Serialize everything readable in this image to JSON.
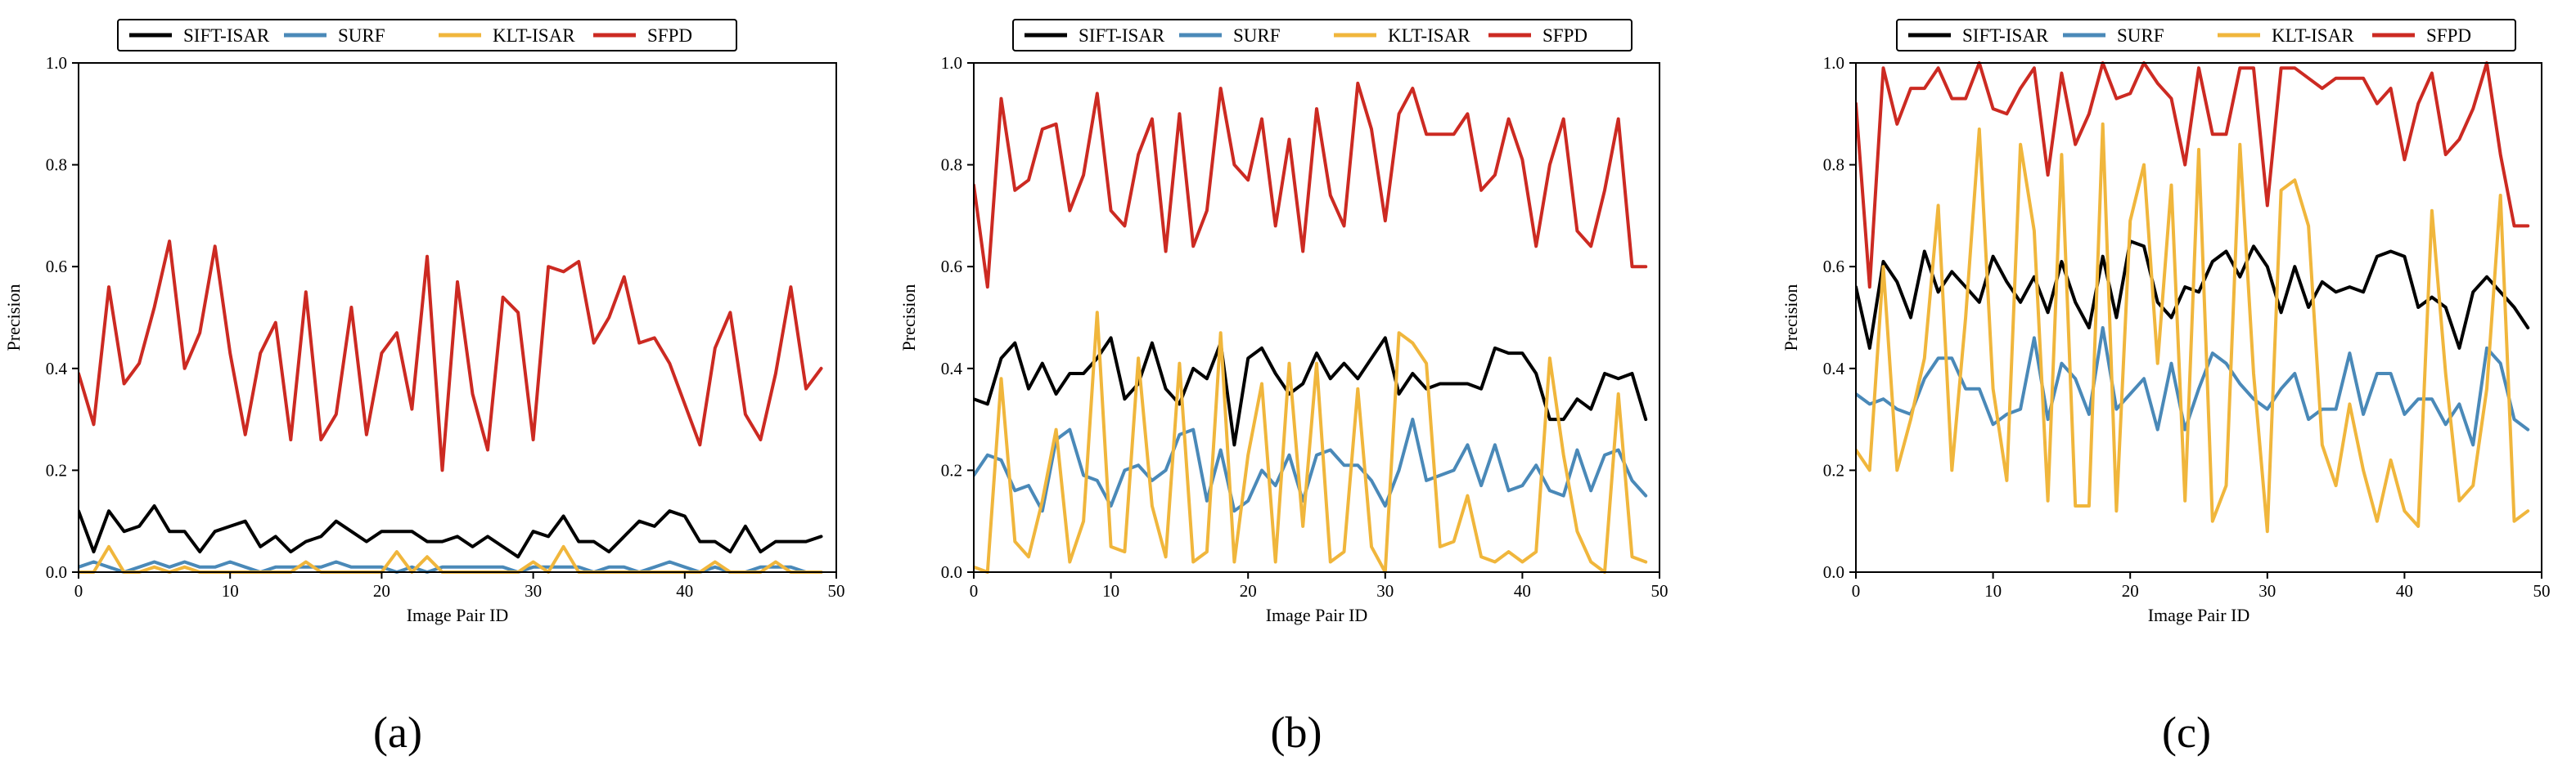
{
  "colors": {
    "SIFT-ISAR": "#000000",
    "SURF": "#4a89b8",
    "KLT-ISAR": "#f0b63c",
    "SFPD": "#cc2a22"
  },
  "chart_data": [
    {
      "type": "line",
      "caption": "(a)",
      "title": "",
      "xlabel": "Image Pair ID",
      "ylabel": "Precision",
      "xlim": [
        0,
        50
      ],
      "ylim": [
        0,
        1.0
      ],
      "xticks": [
        0,
        10,
        20,
        30,
        40,
        50
      ],
      "yticks": [
        "0.0",
        "0.2",
        "0.4",
        "0.6",
        "0.8",
        "1.0"
      ],
      "legend": "top-center",
      "x": [
        0,
        1,
        2,
        3,
        4,
        5,
        6,
        7,
        8,
        9,
        10,
        11,
        12,
        13,
        14,
        15,
        16,
        17,
        18,
        19,
        20,
        21,
        22,
        23,
        24,
        25,
        26,
        27,
        28,
        29,
        30,
        31,
        32,
        33,
        34,
        35,
        36,
        37,
        38,
        39,
        40,
        41,
        42,
        43,
        44,
        45,
        46,
        47,
        48,
        49
      ],
      "series": [
        {
          "name": "SIFT-ISAR",
          "values": [
            0.12,
            0.04,
            0.12,
            0.08,
            0.09,
            0.13,
            0.08,
            0.08,
            0.04,
            0.08,
            0.09,
            0.1,
            0.05,
            0.07,
            0.04,
            0.06,
            0.07,
            0.1,
            0.08,
            0.06,
            0.08,
            0.08,
            0.08,
            0.06,
            0.06,
            0.07,
            0.05,
            0.07,
            0.05,
            0.03,
            0.08,
            0.07,
            0.11,
            0.06,
            0.06,
            0.04,
            0.07,
            0.1,
            0.09,
            0.12,
            0.11,
            0.06,
            0.06,
            0.04,
            0.09,
            0.04,
            0.06,
            0.06,
            0.06,
            0.07
          ]
        },
        {
          "name": "SURF",
          "values": [
            0.01,
            0.02,
            0.01,
            0.0,
            0.01,
            0.02,
            0.01,
            0.02,
            0.01,
            0.01,
            0.02,
            0.01,
            0.0,
            0.01,
            0.01,
            0.01,
            0.01,
            0.02,
            0.01,
            0.01,
            0.01,
            0.0,
            0.01,
            0.0,
            0.01,
            0.01,
            0.01,
            0.01,
            0.01,
            0.0,
            0.01,
            0.01,
            0.01,
            0.01,
            0.0,
            0.01,
            0.01,
            0.0,
            0.01,
            0.02,
            0.01,
            0.0,
            0.01,
            0.0,
            0.0,
            0.01,
            0.01,
            0.01,
            0.0,
            0.0
          ]
        },
        {
          "name": "KLT-ISAR",
          "values": [
            0.0,
            0.0,
            0.05,
            0.0,
            0.0,
            0.01,
            0.0,
            0.01,
            0.0,
            0.0,
            0.0,
            0.0,
            0.0,
            0.0,
            0.0,
            0.02,
            0.0,
            0.0,
            0.0,
            0.0,
            0.0,
            0.04,
            0.0,
            0.03,
            0.0,
            0.0,
            0.0,
            0.0,
            0.0,
            0.0,
            0.02,
            0.0,
            0.05,
            0.0,
            0.0,
            0.0,
            0.0,
            0.0,
            0.0,
            0.0,
            0.0,
            0.0,
            0.02,
            0.0,
            0.0,
            0.0,
            0.02,
            0.0,
            0.0,
            0.0
          ]
        },
        {
          "name": "SFPD",
          "values": [
            0.39,
            0.29,
            0.56,
            0.37,
            0.41,
            0.52,
            0.65,
            0.4,
            0.47,
            0.64,
            0.43,
            0.27,
            0.43,
            0.49,
            0.26,
            0.55,
            0.26,
            0.31,
            0.52,
            0.27,
            0.43,
            0.47,
            0.32,
            0.62,
            0.2,
            0.57,
            0.35,
            0.24,
            0.54,
            0.51,
            0.26,
            0.6,
            0.59,
            0.61,
            0.45,
            0.5,
            0.58,
            0.45,
            0.46,
            0.41,
            0.33,
            0.25,
            0.44,
            0.51,
            0.31,
            0.26,
            0.39,
            0.56,
            0.36,
            0.4
          ]
        }
      ]
    },
    {
      "type": "line",
      "caption": "(b)",
      "title": "",
      "xlabel": "Image Pair ID",
      "ylabel": "Precision",
      "xlim": [
        0,
        50
      ],
      "ylim": [
        0,
        1.0
      ],
      "xticks": [
        0,
        10,
        20,
        30,
        40,
        50
      ],
      "yticks": [
        "0.0",
        "0.2",
        "0.4",
        "0.6",
        "0.8",
        "1.0"
      ],
      "legend": "top-center",
      "x": [
        0,
        1,
        2,
        3,
        4,
        5,
        6,
        7,
        8,
        9,
        10,
        11,
        12,
        13,
        14,
        15,
        16,
        17,
        18,
        19,
        20,
        21,
        22,
        23,
        24,
        25,
        26,
        27,
        28,
        29,
        30,
        31,
        32,
        33,
        34,
        35,
        36,
        37,
        38,
        39,
        40,
        41,
        42,
        43,
        44,
        45,
        46,
        47,
        48,
        49
      ],
      "series": [
        {
          "name": "SIFT-ISAR",
          "values": [
            0.34,
            0.33,
            0.42,
            0.45,
            0.36,
            0.41,
            0.35,
            0.39,
            0.39,
            0.42,
            0.46,
            0.34,
            0.37,
            0.45,
            0.36,
            0.33,
            0.4,
            0.38,
            0.45,
            0.25,
            0.42,
            0.44,
            0.39,
            0.35,
            0.37,
            0.43,
            0.38,
            0.41,
            0.38,
            0.42,
            0.46,
            0.35,
            0.39,
            0.36,
            0.37,
            0.37,
            0.37,
            0.36,
            0.44,
            0.43,
            0.43,
            0.39,
            0.3,
            0.3,
            0.34,
            0.32,
            0.39,
            0.38,
            0.39,
            0.3
          ]
        },
        {
          "name": "SURF",
          "values": [
            0.19,
            0.23,
            0.22,
            0.16,
            0.17,
            0.12,
            0.26,
            0.28,
            0.19,
            0.18,
            0.13,
            0.2,
            0.21,
            0.18,
            0.2,
            0.27,
            0.28,
            0.14,
            0.24,
            0.12,
            0.14,
            0.2,
            0.17,
            0.23,
            0.14,
            0.23,
            0.24,
            0.21,
            0.21,
            0.18,
            0.13,
            0.2,
            0.3,
            0.18,
            0.19,
            0.2,
            0.25,
            0.17,
            0.25,
            0.16,
            0.17,
            0.21,
            0.16,
            0.15,
            0.24,
            0.16,
            0.23,
            0.24,
            0.18,
            0.15
          ]
        },
        {
          "name": "KLT-ISAR",
          "values": [
            0.01,
            0.0,
            0.38,
            0.06,
            0.03,
            0.14,
            0.28,
            0.02,
            0.1,
            0.51,
            0.05,
            0.04,
            0.42,
            0.13,
            0.03,
            0.41,
            0.02,
            0.04,
            0.47,
            0.02,
            0.23,
            0.37,
            0.02,
            0.41,
            0.09,
            0.41,
            0.02,
            0.04,
            0.36,
            0.05,
            0.0,
            0.47,
            0.45,
            0.41,
            0.05,
            0.06,
            0.15,
            0.03,
            0.02,
            0.04,
            0.02,
            0.04,
            0.42,
            0.23,
            0.08,
            0.02,
            0.0,
            0.35,
            0.03,
            0.02
          ]
        },
        {
          "name": "SFPD",
          "values": [
            0.76,
            0.56,
            0.93,
            0.75,
            0.77,
            0.87,
            0.88,
            0.71,
            0.78,
            0.94,
            0.71,
            0.68,
            0.82,
            0.89,
            0.63,
            0.9,
            0.64,
            0.71,
            0.95,
            0.8,
            0.77,
            0.89,
            0.68,
            0.85,
            0.63,
            0.91,
            0.74,
            0.68,
            0.96,
            0.87,
            0.69,
            0.9,
            0.95,
            0.86,
            0.86,
            0.86,
            0.9,
            0.75,
            0.78,
            0.89,
            0.81,
            0.64,
            0.8,
            0.89,
            0.67,
            0.64,
            0.75,
            0.89,
            0.6,
            0.6
          ]
        }
      ]
    },
    {
      "type": "line",
      "caption": "(c)",
      "title": "",
      "xlabel": "Image Pair ID",
      "ylabel": "Precision",
      "xlim": [
        0,
        50
      ],
      "ylim": [
        0,
        1.0
      ],
      "xticks": [
        0,
        10,
        20,
        30,
        40,
        50
      ],
      "yticks": [
        "0.0",
        "0.2",
        "0.4",
        "0.6",
        "0.8",
        "1.0"
      ],
      "legend": "top-center",
      "x": [
        0,
        1,
        2,
        3,
        4,
        5,
        6,
        7,
        8,
        9,
        10,
        11,
        12,
        13,
        14,
        15,
        16,
        17,
        18,
        19,
        20,
        21,
        22,
        23,
        24,
        25,
        26,
        27,
        28,
        29,
        30,
        31,
        32,
        33,
        34,
        35,
        36,
        37,
        38,
        39,
        40,
        41,
        42,
        43,
        44,
        45,
        46,
        47,
        48,
        49
      ],
      "series": [
        {
          "name": "SIFT-ISAR",
          "values": [
            0.56,
            0.44,
            0.61,
            0.57,
            0.5,
            0.63,
            0.55,
            0.59,
            0.56,
            0.53,
            0.62,
            0.57,
            0.53,
            0.58,
            0.51,
            0.61,
            0.53,
            0.48,
            0.62,
            0.5,
            0.65,
            0.64,
            0.53,
            0.5,
            0.56,
            0.55,
            0.61,
            0.63,
            0.58,
            0.64,
            0.6,
            0.51,
            0.6,
            0.52,
            0.57,
            0.55,
            0.56,
            0.55,
            0.62,
            0.63,
            0.62,
            0.52,
            0.54,
            0.52,
            0.44,
            0.55,
            0.58,
            0.55,
            0.52,
            0.48
          ]
        },
        {
          "name": "SURF",
          "values": [
            0.35,
            0.33,
            0.34,
            0.32,
            0.31,
            0.38,
            0.42,
            0.42,
            0.36,
            0.36,
            0.29,
            0.31,
            0.32,
            0.46,
            0.3,
            0.41,
            0.38,
            0.31,
            0.48,
            0.32,
            0.35,
            0.38,
            0.28,
            0.41,
            0.28,
            0.36,
            0.43,
            0.41,
            0.37,
            0.34,
            0.32,
            0.36,
            0.39,
            0.3,
            0.32,
            0.32,
            0.43,
            0.31,
            0.39,
            0.39,
            0.31,
            0.34,
            0.34,
            0.29,
            0.33,
            0.25,
            0.44,
            0.41,
            0.3,
            0.28
          ]
        },
        {
          "name": "KLT-ISAR",
          "values": [
            0.24,
            0.2,
            0.6,
            0.2,
            0.3,
            0.42,
            0.72,
            0.2,
            0.5,
            0.87,
            0.36,
            0.18,
            0.84,
            0.67,
            0.14,
            0.82,
            0.13,
            0.13,
            0.88,
            0.12,
            0.69,
            0.8,
            0.41,
            0.76,
            0.14,
            0.83,
            0.1,
            0.17,
            0.84,
            0.39,
            0.08,
            0.75,
            0.77,
            0.68,
            0.25,
            0.17,
            0.33,
            0.2,
            0.1,
            0.22,
            0.12,
            0.09,
            0.71,
            0.39,
            0.14,
            0.17,
            0.36,
            0.74,
            0.1,
            0.12
          ]
        },
        {
          "name": "SFPD",
          "values": [
            0.92,
            0.56,
            0.99,
            0.88,
            0.95,
            0.95,
            0.99,
            0.93,
            0.93,
            1.0,
            0.91,
            0.9,
            0.95,
            0.99,
            0.78,
            0.98,
            0.84,
            0.9,
            1.0,
            0.93,
            0.94,
            1.0,
            0.96,
            0.93,
            0.8,
            0.99,
            0.86,
            0.86,
            0.99,
            0.99,
            0.72,
            0.99,
            0.99,
            0.97,
            0.95,
            0.97,
            0.97,
            0.97,
            0.92,
            0.95,
            0.81,
            0.92,
            0.98,
            0.82,
            0.85,
            0.91,
            1.0,
            0.82,
            0.68,
            0.68
          ]
        }
      ]
    }
  ]
}
